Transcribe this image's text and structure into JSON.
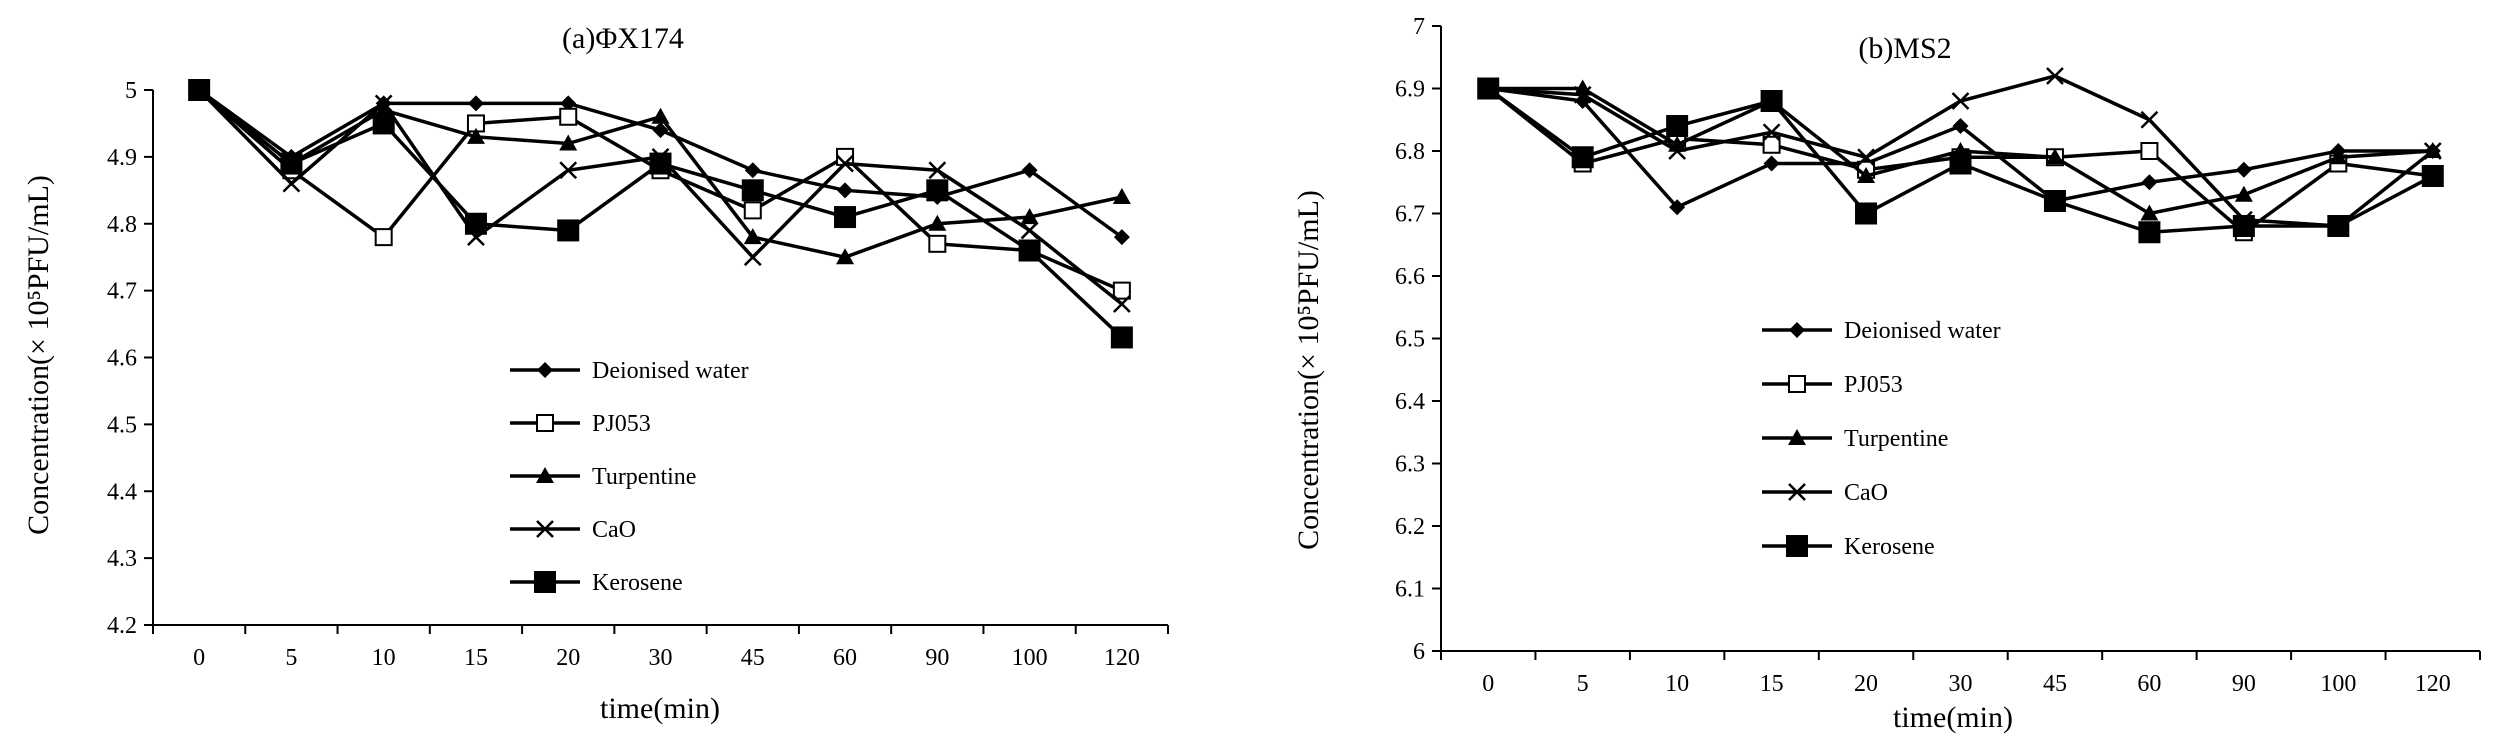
{
  "chart_data": [
    {
      "id": "left",
      "type": "line",
      "title": "(a)ΦX174",
      "xlabel": "time(min)",
      "ylabel": "Concentration(× 10⁵PFU/mL)",
      "categories": [
        "0",
        "5",
        "10",
        "15",
        "20",
        "30",
        "45",
        "60",
        "90",
        "100",
        "120"
      ],
      "ylim": [
        4.2,
        5
      ],
      "yticks": [
        "4.2",
        "4.3",
        "4.4",
        "4.5",
        "4.6",
        "4.7",
        "4.8",
        "4.9",
        "5"
      ],
      "grid": false,
      "legend_position": "center",
      "series": [
        {
          "name": "Deionised water",
          "marker": "diamond",
          "values": [
            5,
            4.9,
            4.98,
            4.98,
            4.98,
            4.94,
            4.88,
            4.85,
            4.84,
            4.88,
            4.78
          ]
        },
        {
          "name": "PJ053",
          "marker": "square-open",
          "values": [
            5,
            4.88,
            4.78,
            4.95,
            4.96,
            4.88,
            4.82,
            4.9,
            4.77,
            4.76,
            4.7
          ]
        },
        {
          "name": "Turpentine",
          "marker": "triangle",
          "values": [
            5,
            4.89,
            4.97,
            4.93,
            4.92,
            4.96,
            4.78,
            4.75,
            4.8,
            4.81,
            4.84
          ]
        },
        {
          "name": "CaO",
          "marker": "x",
          "values": [
            5,
            4.86,
            4.98,
            4.78,
            4.88,
            4.9,
            4.75,
            4.89,
            4.88,
            4.79,
            4.68
          ]
        },
        {
          "name": "Kerosene",
          "marker": "square-filled",
          "values": [
            5,
            4.89,
            4.95,
            4.8,
            4.79,
            4.89,
            4.85,
            4.81,
            4.85,
            4.76,
            4.63
          ]
        }
      ]
    },
    {
      "id": "right",
      "type": "line",
      "title": "(b)MS2",
      "xlabel": "time(min)",
      "ylabel": "Concentration(× 10⁵PFU/mL)",
      "categories": [
        "0",
        "5",
        "10",
        "15",
        "20",
        "30",
        "45",
        "60",
        "90",
        "100",
        "120"
      ],
      "ylim": [
        6,
        7
      ],
      "yticks": [
        "6",
        "6.1",
        "6.2",
        "6.3",
        "6.4",
        "6.5",
        "6.6",
        "6.7",
        "6.8",
        "6.9",
        "7"
      ],
      "grid": false,
      "legend_position": "center",
      "series": [
        {
          "name": "Deionised water",
          "marker": "diamond",
          "values": [
            6.9,
            6.88,
            6.71,
            6.78,
            6.78,
            6.84,
            6.72,
            6.75,
            6.77,
            6.8,
            6.8
          ]
        },
        {
          "name": "PJ053",
          "marker": "square-open",
          "values": [
            6.9,
            6.78,
            6.82,
            6.81,
            6.77,
            6.79,
            6.79,
            6.8,
            6.67,
            6.78,
            6.76
          ]
        },
        {
          "name": "Turpentine",
          "marker": "triangle",
          "values": [
            6.9,
            6.9,
            6.81,
            6.88,
            6.76,
            6.8,
            6.79,
            6.7,
            6.73,
            6.79,
            6.8
          ]
        },
        {
          "name": "CaO",
          "marker": "x",
          "values": [
            6.9,
            6.89,
            6.8,
            6.83,
            6.79,
            6.88,
            6.92,
            6.85,
            6.69,
            6.68,
            6.8
          ]
        },
        {
          "name": "Kerosene",
          "marker": "square-filled",
          "values": [
            6.9,
            6.79,
            6.84,
            6.88,
            6.7,
            6.78,
            6.72,
            6.67,
            6.68,
            6.68,
            6.76
          ]
        }
      ]
    }
  ]
}
